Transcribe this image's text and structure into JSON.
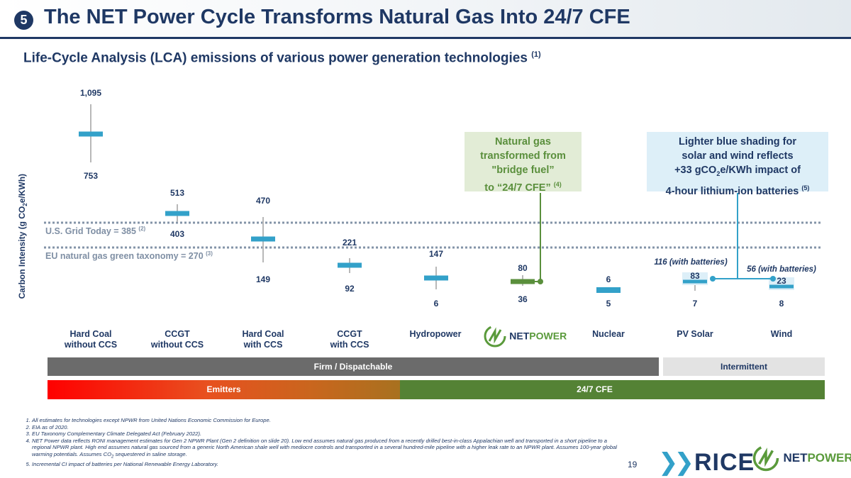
{
  "header": {
    "slide_number": "5",
    "title": "The NET Power Cycle Transforms Natural Gas Into 24/7 CFE"
  },
  "subtitle": {
    "text": "Life-Cycle Analysis (LCA) emissions of various power generation technologies",
    "ref": "(1)"
  },
  "colors": {
    "navy": "#1f3864",
    "bar_blue": "#33a1c9",
    "netpower_green": "#5a8f3c",
    "ref_line": "#8494a8"
  },
  "chart_data": {
    "type": "range",
    "ylabel_prefix": "Carbon Intensity (g CO",
    "ylabel_sub": "2",
    "ylabel_suffix": "e/KWh)",
    "categories": [
      "Hard Coal without CCS",
      "CCGT without CCS",
      "Hard Coal with CCS",
      "CCGT with CCS",
      "Hydropower",
      "NET Power",
      "Nuclear",
      "PV Solar",
      "Wind"
    ],
    "ranges": [
      {
        "category": "Hard Coal without CCS",
        "high": 1095,
        "low": 753,
        "high_label": "1,095",
        "low_label": "753"
      },
      {
        "category": "CCGT without CCS",
        "high": 513,
        "low": 403,
        "high_label": "513",
        "low_label": "403"
      },
      {
        "category": "Hard Coal with CCS",
        "high": 470,
        "low": 149,
        "high_label": "470",
        "low_label": "149"
      },
      {
        "category": "CCGT with CCS",
        "high": 221,
        "low": 92,
        "high_label": "221",
        "low_label": "92"
      },
      {
        "category": "Hydropower",
        "high": 147,
        "low": 6,
        "high_label": "147",
        "low_label": "6"
      },
      {
        "category": "NET Power",
        "high": 80,
        "low": 36,
        "high_label": "80",
        "low_label": "36"
      },
      {
        "category": "Nuclear",
        "high": 6,
        "low": 5,
        "high_label": "6",
        "low_label": "5"
      },
      {
        "category": "PV Solar",
        "high": 83,
        "low": 7,
        "high_label": "83",
        "low_label": "7",
        "with_batteries": "116 (with batteries)"
      },
      {
        "category": "Wind",
        "high": 23,
        "low": 8,
        "high_label": "23",
        "low_label": "8",
        "with_batteries": "56 (with batteries)"
      }
    ],
    "reference_lines": [
      {
        "label": "U.S. Grid Today  = 385",
        "ref": "(2)",
        "value": 385
      },
      {
        "label": "EU natural gas green taxonomy = 270",
        "ref": "(3)",
        "value": 270
      }
    ]
  },
  "labels": {
    "cats": [
      [
        "Hard Coal",
        "without CCS"
      ],
      [
        "CCGT",
        "without CCS"
      ],
      [
        "Hard Coal",
        "with CCS"
      ],
      [
        "CCGT",
        "with CCS"
      ],
      [
        "Hydropower",
        ""
      ],
      [
        "",
        ""
      ],
      [
        "Nuclear",
        ""
      ],
      [
        "PV Solar",
        ""
      ],
      [
        "Wind",
        ""
      ]
    ]
  },
  "callouts": {
    "natural_gas": {
      "l1": "Natural gas",
      "l2": "transformed from",
      "l3": "\"bridge fuel”",
      "l4": "to “24/7 CFE”",
      "ref": "(4)"
    },
    "solar_wind": {
      "l1": "Lighter blue shading for",
      "l2": "solar and wind reflects",
      "l3a": "+33 gCO",
      "l3sub": "2",
      "l3b": "e/KWh impact of",
      "l4": "4-hour lithium-ion batteries",
      "ref": "(5)"
    }
  },
  "bands": {
    "firm": "Firm / Dispatchable",
    "intermittent": "Intermittent",
    "emitters": "Emitters",
    "cfe": "24/7 CFE"
  },
  "footnotes": {
    "f1": "All estimates for technologies except NPWR from United Nations Economic Commission for Europe.",
    "f2": "EIA as of 2020.",
    "f3": "EU Taxonomy Complementary Climate Delegated Act (February 2022).",
    "f4a": "NET Power data reflects RONI management estimates for Gen 2 NPWR Plant (Gen 2 definition on slide 20). Low end assumes natural gas produced from a recently drilled best-in-class Appalachian well and transported in a short pipeline to a regional NPWR plant. High end assumes natural gas sourced from a generic North American shale well with mediocre controls and transported in a several hundred-mile pipeline with a higher leak rate to an NPWR plant. Assumes 100-year global warming potentials. Assumes CO",
    "f4sub": "2",
    "f4b": " sequestered in saline storage.",
    "f5": "Incremental CI impact of batteries per National Renewable Energy Laboratory."
  },
  "page_number": "19",
  "logos": {
    "rice": "RICE",
    "netpower_a": "NET",
    "netpower_b": "POWER"
  }
}
